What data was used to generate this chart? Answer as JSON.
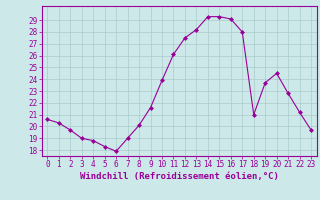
{
  "x": [
    0,
    1,
    2,
    3,
    4,
    5,
    6,
    7,
    8,
    9,
    10,
    11,
    12,
    13,
    14,
    15,
    16,
    17,
    18,
    19,
    20,
    21,
    22,
    23
  ],
  "y": [
    20.6,
    20.3,
    19.7,
    19.0,
    18.8,
    18.3,
    17.9,
    19.0,
    20.1,
    21.6,
    23.9,
    26.1,
    27.5,
    28.2,
    29.3,
    29.3,
    29.1,
    28.0,
    21.0,
    23.7,
    24.5,
    22.8,
    21.2,
    19.7
  ],
  "line_color": "#990099",
  "marker": "D",
  "marker_size": 2.0,
  "bg_color": "#cce8e8",
  "grid_color": "#aacaca",
  "xlabel": "Windchill (Refroidissement éolien,°C)",
  "xlabel_color": "#990099",
  "tick_color": "#990099",
  "spine_color": "#990099",
  "ylim": [
    17.5,
    30.2
  ],
  "xlim": [
    -0.5,
    23.5
  ],
  "yticks": [
    18,
    19,
    20,
    21,
    22,
    23,
    24,
    25,
    26,
    27,
    28,
    29
  ],
  "xticks": [
    0,
    1,
    2,
    3,
    4,
    5,
    6,
    7,
    8,
    9,
    10,
    11,
    12,
    13,
    14,
    15,
    16,
    17,
    18,
    19,
    20,
    21,
    22,
    23
  ],
  "xtick_labels": [
    "0",
    "1",
    "2",
    "3",
    "4",
    "5",
    "6",
    "7",
    "8",
    "9",
    "10",
    "11",
    "12",
    "13",
    "14",
    "15",
    "16",
    "17",
    "18",
    "19",
    "20",
    "21",
    "22",
    "23"
  ],
  "ytick_labels": [
    "18",
    "19",
    "20",
    "21",
    "22",
    "23",
    "24",
    "25",
    "26",
    "27",
    "28",
    "29"
  ],
  "tick_fontsize": 5.5,
  "xlabel_fontsize": 6.5
}
